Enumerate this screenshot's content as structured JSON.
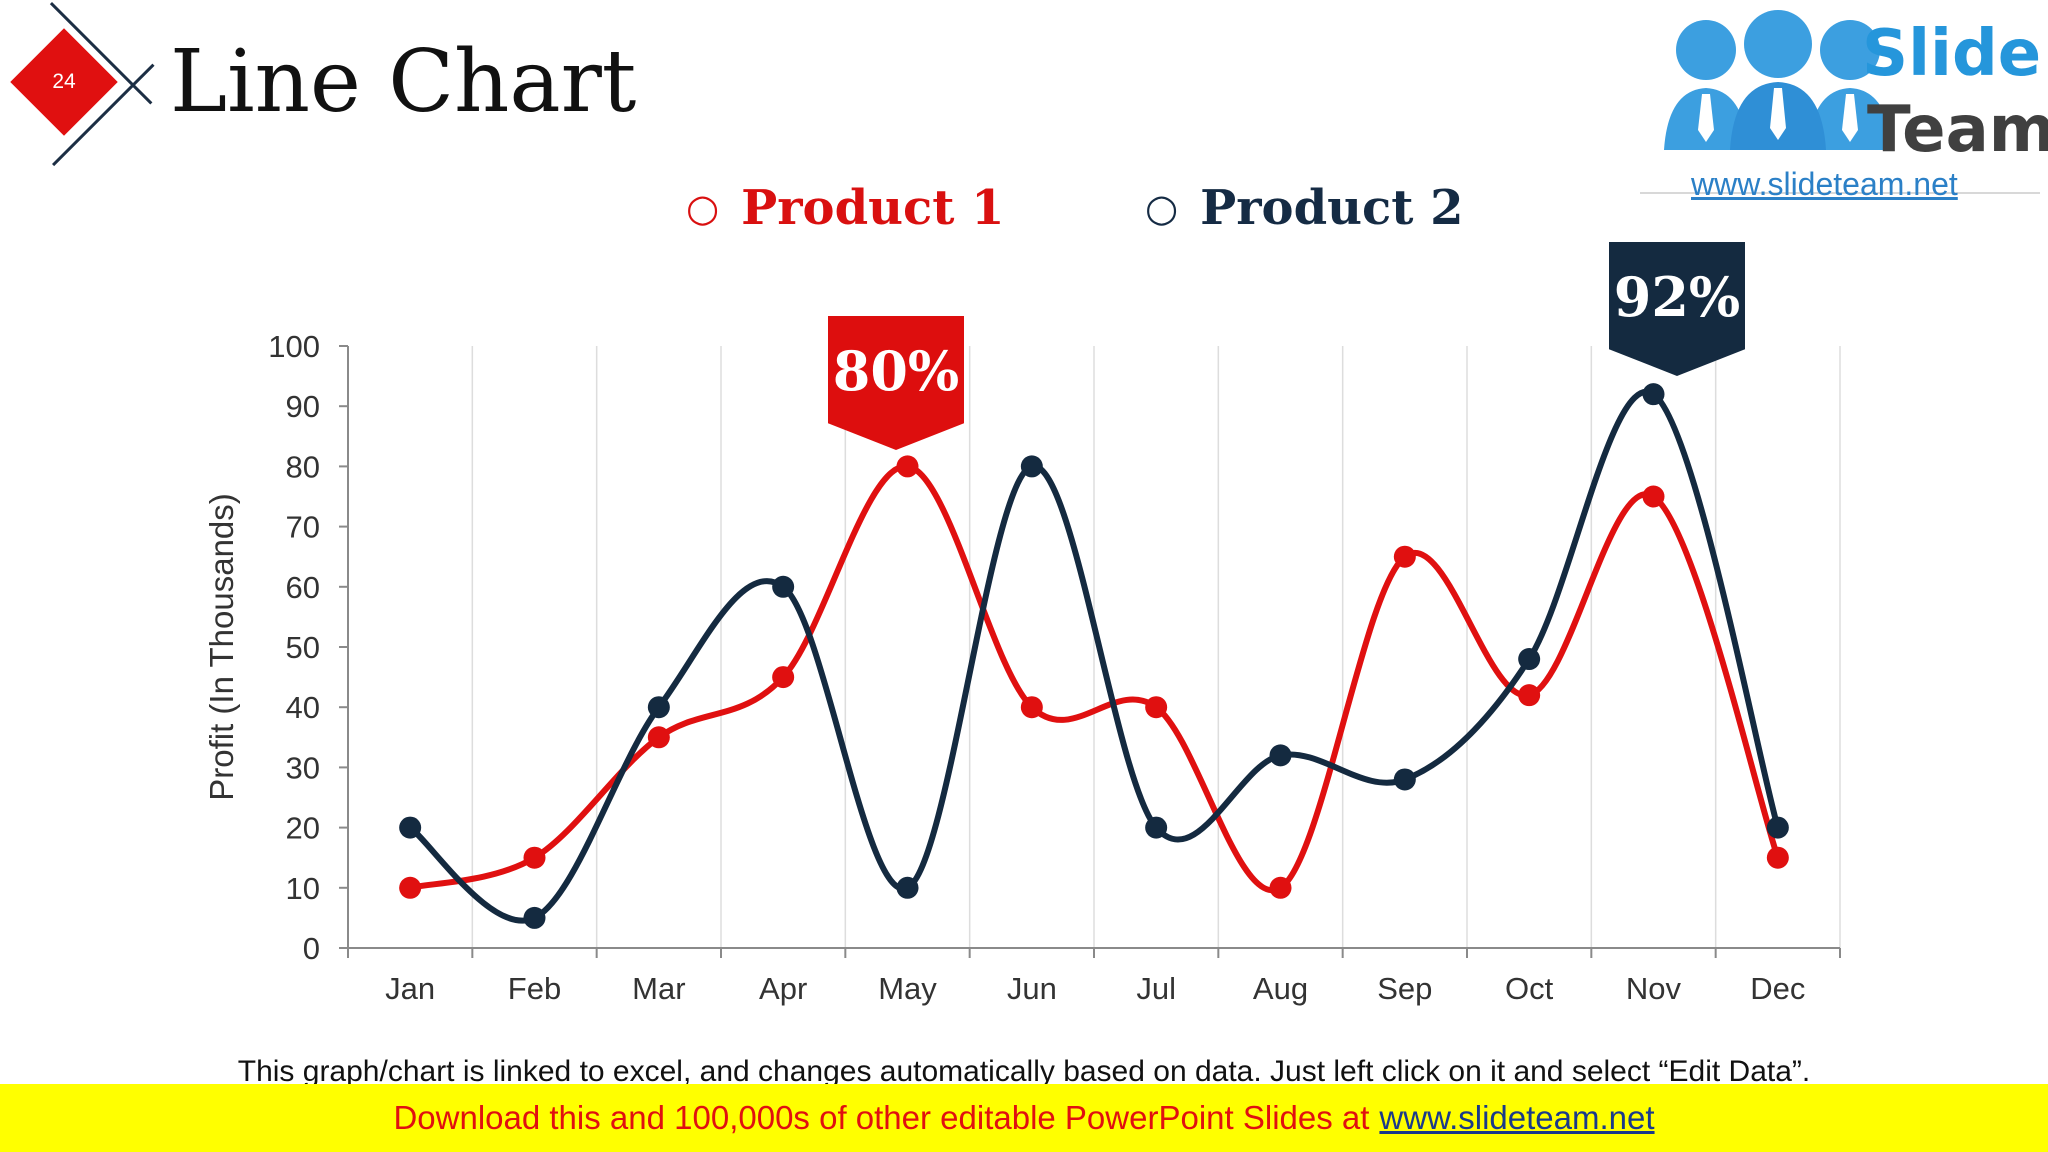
{
  "slide": {
    "number": "24",
    "title": "Line Chart"
  },
  "logo": {
    "line1": "Slide",
    "line2": "Team",
    "url": "www.slideteam.net"
  },
  "legend": {
    "marker": "○",
    "product1": "Product 1",
    "product2": "Product 2"
  },
  "callouts": {
    "product1_peak": "80%",
    "product2_peak": "92%"
  },
  "caption": "This graph/chart is linked to excel, and changes automatically based on data. Just left click on it and select “Edit Data”.",
  "footer": {
    "text": "Download this and 100,000s of other editable PowerPoint Slides at",
    "url": "www.slideteam.net"
  },
  "colors": {
    "product1": "#e01010",
    "product2": "#142a40",
    "accent": "#e01010",
    "footer_bg": "#ffff00"
  },
  "chart_data": {
    "type": "line",
    "categories": [
      "Jan",
      "Feb",
      "Mar",
      "Apr",
      "May",
      "Jun",
      "Jul",
      "Aug",
      "Sep",
      "Oct",
      "Nov",
      "Dec"
    ],
    "series": [
      {
        "name": "Product 1",
        "color": "#e01010",
        "values": [
          10,
          15,
          35,
          45,
          80,
          40,
          40,
          10,
          65,
          42,
          75,
          15
        ]
      },
      {
        "name": "Product 2",
        "color": "#142a40",
        "values": [
          20,
          5,
          40,
          60,
          10,
          80,
          20,
          32,
          28,
          48,
          92,
          20
        ]
      }
    ],
    "ylabel": "Profit (In Thousands)",
    "xlabel": "",
    "ylim": [
      0,
      100
    ],
    "yticks": [
      0,
      10,
      20,
      30,
      40,
      50,
      60,
      70,
      80,
      90,
      100
    ],
    "grid": "vertical",
    "smooth": true,
    "legend_position": "top"
  }
}
